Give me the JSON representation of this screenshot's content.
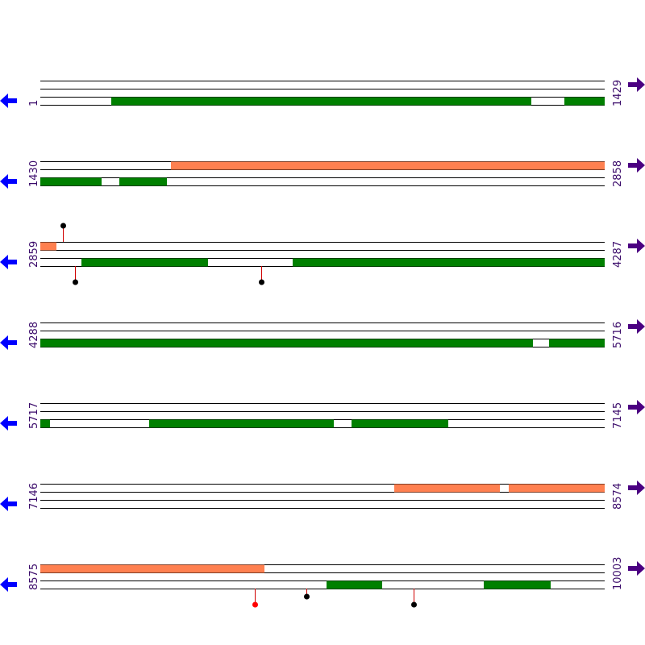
{
  "rows": [
    {
      "start": "1",
      "end": "1429"
    },
    {
      "start": "1430",
      "end": "2858"
    },
    {
      "start": "2859",
      "end": "4287"
    },
    {
      "start": "4288",
      "end": "5716"
    },
    {
      "start": "5717",
      "end": "7145"
    },
    {
      "start": "7146",
      "end": "8574"
    },
    {
      "start": "8575",
      "end": "10003"
    }
  ]
}
